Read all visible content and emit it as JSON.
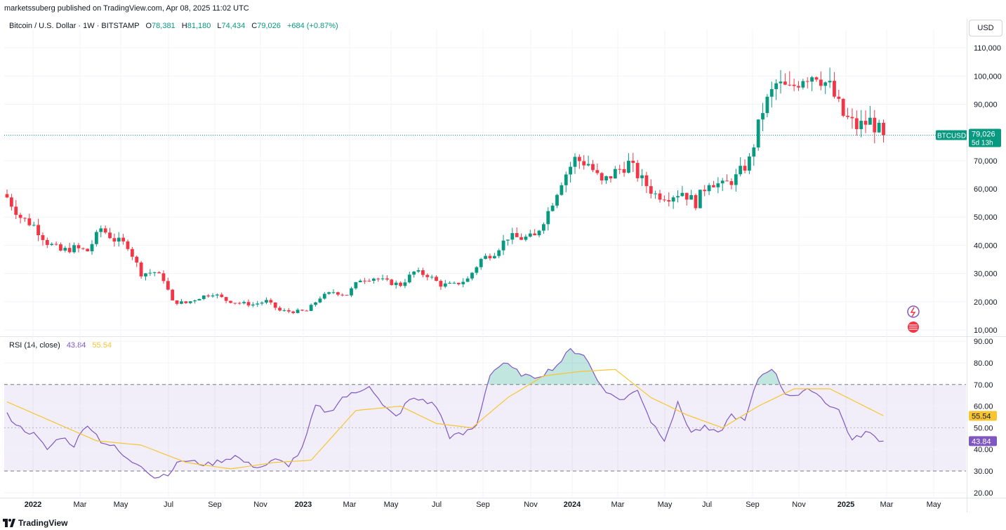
{
  "header": {
    "published": "marketssuberg published on TradingView.com, Apr 08, 2025 11:02 UTC"
  },
  "legend": {
    "symbol": "Bitcoin / U.S. Dollar · 1W · BITSTAMP",
    "open_key": "O",
    "open": "78,381",
    "high_key": "H",
    "high": "81,180",
    "low_key": "L",
    "low": "74,434",
    "close_key": "C",
    "close": "79,026",
    "change": "+684 (+0.87%)"
  },
  "rsi_legend": {
    "title": "RSI (14, close)",
    "rsi_value": "43.84",
    "ma_value": "55.54"
  },
  "currency": "USD",
  "price_tag": {
    "symbol": "BTCUSD",
    "price": "79,026",
    "countdown": "5d 13h"
  },
  "footer": {
    "brand": "TradingView"
  },
  "colors": {
    "up": "#089981",
    "down": "#f23645",
    "rsi_line": "#7e57c2",
    "rsi_ma": "#f7c531",
    "rsi_band": "#7e57c2",
    "grid": "#f0f3fa"
  },
  "chart_data": [
    {
      "type": "candlestick",
      "title": "Bitcoin / U.S. Dollar · 1W · BITSTAMP",
      "x_ticks": [
        "2022",
        "Mar",
        "May",
        "Jul",
        "Sep",
        "Nov",
        "2023",
        "Mar",
        "May",
        "Jul",
        "Sep",
        "Nov",
        "2024",
        "Mar",
        "May",
        "Jul",
        "Sep",
        "Nov",
        "2025",
        "Mar",
        "May"
      ],
      "x_ticks_bold": [
        "2022",
        "2023",
        "2024",
        "2025"
      ],
      "y_ticks": [
        "110,000",
        "100,000",
        "90,000",
        "80,000",
        "70,000",
        "60,000",
        "50,000",
        "40,000",
        "30,000",
        "20,000",
        "10,000"
      ],
      "y_tick_values": [
        110000,
        100000,
        90000,
        80000,
        70000,
        60000,
        50000,
        40000,
        30000,
        20000,
        10000
      ],
      "ylim": [
        8000,
        114000
      ],
      "last_price": 79026,
      "close_path": [
        [
          0,
          57000
        ],
        [
          3,
          50000
        ],
        [
          6,
          47000
        ],
        [
          9,
          41000
        ],
        [
          12,
          38000
        ],
        [
          15,
          39000
        ],
        [
          18,
          38000
        ],
        [
          21,
          46000
        ],
        [
          24,
          42000
        ],
        [
          27,
          40000
        ],
        [
          30,
          30000
        ],
        [
          33,
          30500
        ],
        [
          35,
          28000
        ],
        [
          37,
          20000
        ],
        [
          40,
          19500
        ],
        [
          43,
          21500
        ],
        [
          46,
          23000
        ],
        [
          49,
          20500
        ],
        [
          52,
          19500
        ],
        [
          55,
          19000
        ],
        [
          58,
          20200
        ],
        [
          61,
          16800
        ],
        [
          64,
          16500
        ],
        [
          67,
          16700
        ],
        [
          70,
          21500
        ],
        [
          73,
          23500
        ],
        [
          76,
          22500
        ],
        [
          79,
          28000
        ],
        [
          82,
          28500
        ],
        [
          85,
          27000
        ],
        [
          88,
          26000
        ],
        [
          91,
          30500
        ],
        [
          94,
          29500
        ],
        [
          97,
          26000
        ],
        [
          100,
          26000
        ],
        [
          103,
          28000
        ],
        [
          106,
          35000
        ],
        [
          109,
          37500
        ],
        [
          112,
          43000
        ],
        [
          115,
          42500
        ],
        [
          118,
          43000
        ],
        [
          121,
          52000
        ],
        [
          124,
          63000
        ],
        [
          127,
          70500
        ],
        [
          130,
          69000
        ],
        [
          133,
          62000
        ],
        [
          136,
          66000
        ],
        [
          139,
          69000
        ],
        [
          142,
          63000
        ],
        [
          145,
          58000
        ],
        [
          148,
          57500
        ],
        [
          151,
          59000
        ],
        [
          154,
          55000
        ],
        [
          157,
          63000
        ],
        [
          160,
          61000
        ],
        [
          163,
          64000
        ],
        [
          166,
          70000
        ],
        [
          169,
          88000
        ],
        [
          172,
          97000
        ],
        [
          175,
          95000
        ],
        [
          178,
          100000
        ],
        [
          181,
          101000
        ],
        [
          184,
          96000
        ],
        [
          187,
          86000
        ],
        [
          190,
          82000
        ],
        [
          193,
          84000
        ],
        [
          196,
          79026
        ]
      ]
    },
    {
      "type": "line",
      "title": "RSI (14, close)",
      "y_ticks": [
        "90.00",
        "80.00",
        "70.00",
        "60.00",
        "50.00",
        "40.00",
        "30.00",
        "20.00"
      ],
      "y_tick_values": [
        90,
        80,
        70,
        60,
        50,
        40,
        30,
        20
      ],
      "ylim": [
        18,
        92
      ],
      "band": [
        30,
        70
      ],
      "midline": 50,
      "series": [
        {
          "values": [
            [
              0,
              56
            ],
            [
              3,
              50
            ],
            [
              6,
              47
            ],
            [
              9,
              40
            ],
            [
              12,
              46
            ],
            [
              15,
              42
            ],
            [
              18,
              52
            ],
            [
              21,
              44
            ],
            [
              24,
              41
            ],
            [
              27,
              35
            ],
            [
              30,
              33
            ],
            [
              33,
              27
            ],
            [
              36,
              29
            ],
            [
              39,
              35
            ],
            [
              42,
              34
            ],
            [
              45,
              33
            ],
            [
              48,
              35
            ],
            [
              51,
              37
            ],
            [
              54,
              33
            ],
            [
              57,
              32
            ],
            [
              60,
              35
            ],
            [
              63,
              33
            ],
            [
              66,
              40
            ],
            [
              69,
              60
            ],
            [
              72,
              57
            ],
            [
              75,
              64
            ],
            [
              78,
              66
            ],
            [
              81,
              70
            ],
            [
              84,
              60
            ],
            [
              87,
              55
            ],
            [
              90,
              63
            ],
            [
              93,
              63
            ],
            [
              96,
              60
            ],
            [
              99,
              46
            ],
            [
              102,
              47
            ],
            [
              105,
              51
            ],
            [
              108,
              75
            ],
            [
              111,
              80
            ],
            [
              114,
              76
            ],
            [
              117,
              73
            ],
            [
              120,
              75
            ],
            [
              123,
              79
            ],
            [
              126,
              86
            ],
            [
              129,
              84
            ],
            [
              132,
              72
            ],
            [
              135,
              65
            ],
            [
              138,
              63
            ],
            [
              141,
              68
            ],
            [
              144,
              53
            ],
            [
              147,
              45
            ],
            [
              150,
              61
            ],
            [
              153,
              48
            ],
            [
              156,
              50
            ],
            [
              159,
              47
            ],
            [
              162,
              56
            ],
            [
              165,
              53
            ],
            [
              168,
              73
            ],
            [
              171,
              78
            ],
            [
              174,
              66
            ],
            [
              177,
              65
            ],
            [
              180,
              68
            ],
            [
              183,
              62
            ],
            [
              186,
              58
            ],
            [
              189,
              44
            ],
            [
              192,
              48
            ],
            [
              196,
              43.84
            ]
          ]
        },
        {
          "values": [
            [
              0,
              62
            ],
            [
              10,
              53
            ],
            [
              20,
              44
            ],
            [
              30,
              42
            ],
            [
              40,
              34
            ],
            [
              50,
              31
            ],
            [
              60,
              34
            ],
            [
              68,
              35
            ],
            [
              78,
              58
            ],
            [
              88,
              60
            ],
            [
              96,
              52
            ],
            [
              104,
              50
            ],
            [
              112,
              64
            ],
            [
              120,
              74
            ],
            [
              128,
              76
            ],
            [
              136,
              77
            ],
            [
              144,
              64
            ],
            [
              152,
              56
            ],
            [
              160,
              50
            ],
            [
              168,
              60
            ],
            [
              176,
              68
            ],
            [
              184,
              68
            ],
            [
              196,
              55.54
            ]
          ]
        }
      ]
    }
  ]
}
